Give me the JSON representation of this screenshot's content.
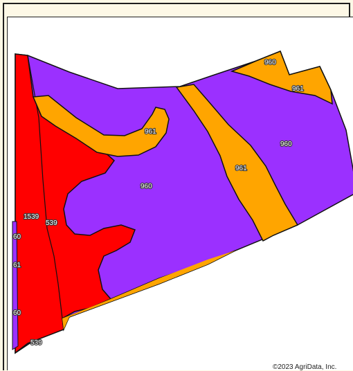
{
  "map": {
    "colors": {
      "unit_960": "#9b30ff",
      "unit_961": "#ffa500",
      "unit_1539": "#ff0000",
      "boundary": "#111111"
    },
    "labels": {
      "l960_top": "960",
      "l961_topright": "961",
      "l960_right": "960",
      "l961_center": "961",
      "l961_left": "961",
      "l960_center": "960",
      "l1539": "1539",
      "l539": "539",
      "l60_edge": "60",
      "l61_edge": "61",
      "l60_bottom": "60",
      "l539_bottom": "539"
    },
    "copyright": "©2023 AgriData, Inc."
  }
}
